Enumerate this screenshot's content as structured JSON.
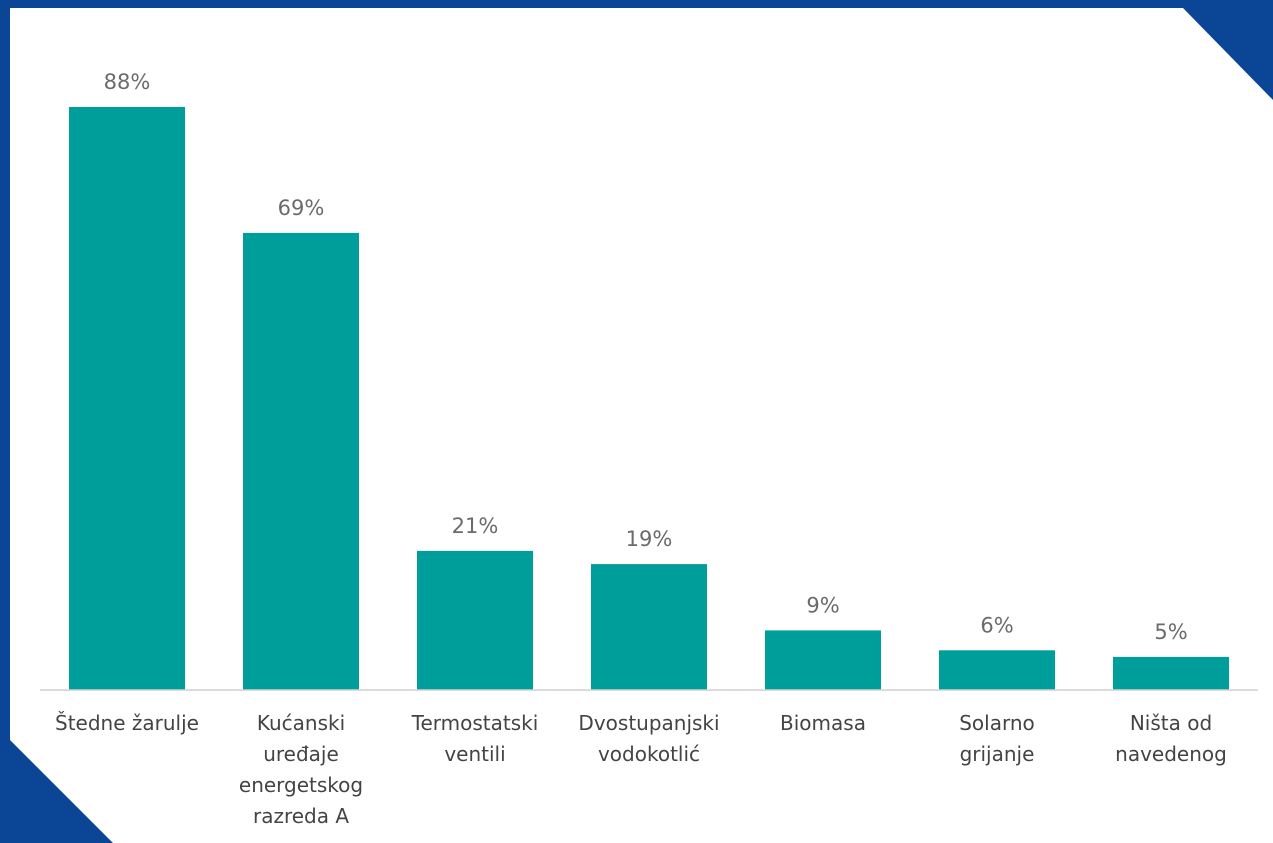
{
  "colors": {
    "frame": "#0b4596",
    "background": "#ffffff",
    "bar": "#009e9b",
    "axis": "#d0d0d0",
    "value_label": "#6b6b6b",
    "category_label": "#444444"
  },
  "chart_data": {
    "type": "bar",
    "categories": [
      [
        "Štedne žarulje"
      ],
      [
        "Kućanski",
        "uređaje",
        "energetskog",
        "razreda A"
      ],
      [
        "Termostatski",
        "ventili"
      ],
      [
        "Dvostupanjski",
        "vodokotlić"
      ],
      [
        "Biomasa"
      ],
      [
        "Solarno",
        "grijanje"
      ],
      [
        "Ništa od",
        "navedenog"
      ]
    ],
    "values": [
      88,
      69,
      21,
      19,
      9,
      6,
      5
    ],
    "value_labels": [
      "88%",
      "69%",
      "21%",
      "19%",
      "9%",
      "6%",
      "5%"
    ],
    "unit": "%",
    "ylim": [
      0,
      100
    ],
    "grid": false,
    "legend": "none"
  }
}
